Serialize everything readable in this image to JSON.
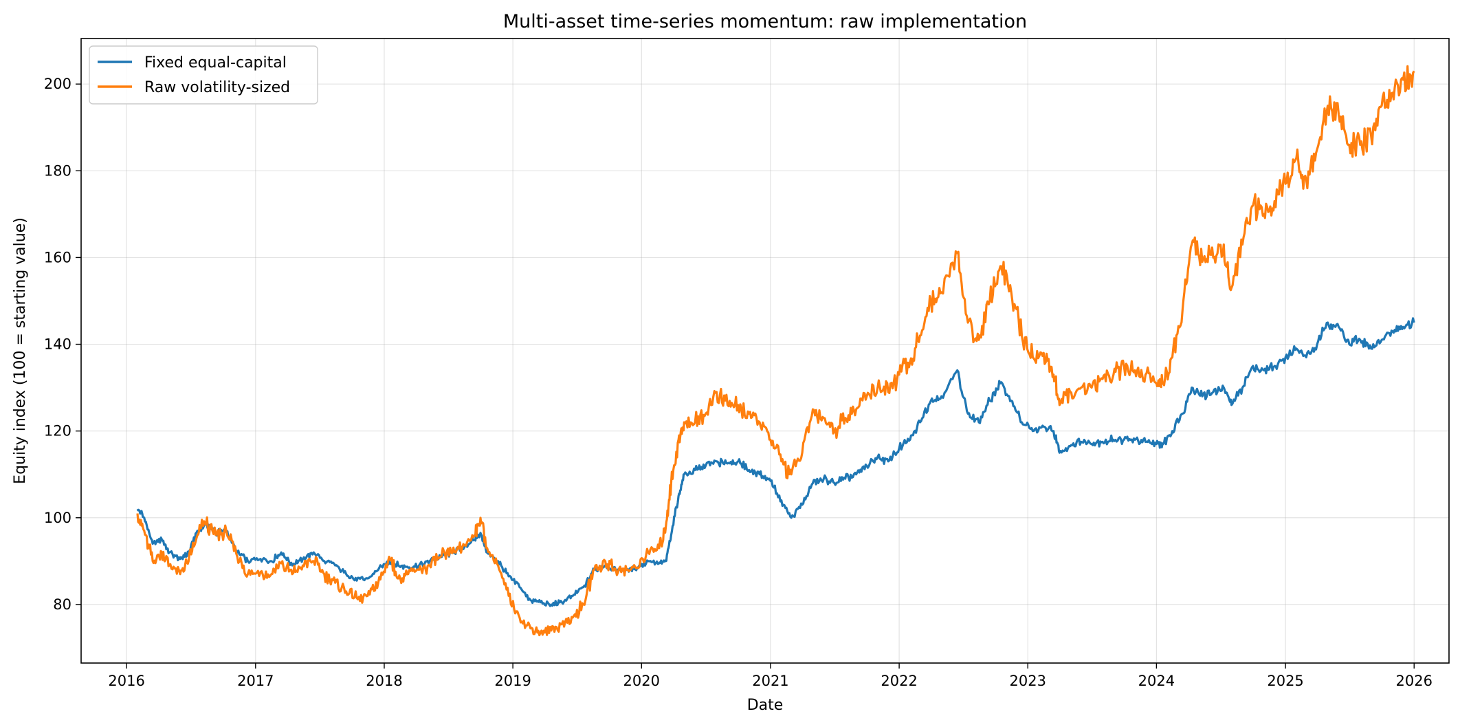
{
  "chart_data": {
    "type": "line",
    "title": "Multi-asset time-series momentum: raw implementation",
    "xlabel": "Date",
    "ylabel": "Equity index (100 = starting value)",
    "xlim": [
      "2015-08-25",
      "2026-04-10"
    ],
    "ylim": [
      66.5,
      210.5
    ],
    "x_ticks": [
      "2016",
      "2017",
      "2018",
      "2019",
      "2020",
      "2021",
      "2022",
      "2023",
      "2024",
      "2025",
      "2026"
    ],
    "y_ticks": [
      80,
      100,
      120,
      140,
      160,
      180,
      200
    ],
    "grid": true,
    "legend_position": "top-left",
    "series": [
      {
        "name": "Fixed equal-capital",
        "color": "#1f77b4",
        "points": [
          [
            "2016-02-01",
            102
          ],
          [
            "2016-02-20",
            100
          ],
          [
            "2016-03-15",
            94
          ],
          [
            "2016-04-10",
            95
          ],
          [
            "2016-05-01",
            92
          ],
          [
            "2016-06-01",
            90.5
          ],
          [
            "2016-06-25",
            92
          ],
          [
            "2016-07-20",
            97
          ],
          [
            "2016-08-15",
            98.5
          ],
          [
            "2016-09-10",
            96.5
          ],
          [
            "2016-10-10",
            97
          ],
          [
            "2016-11-10",
            92
          ],
          [
            "2016-12-10",
            90
          ],
          [
            "2017-01-15",
            90.5
          ],
          [
            "2017-02-15",
            90
          ],
          [
            "2017-03-15",
            92
          ],
          [
            "2017-04-15",
            89
          ],
          [
            "2017-05-15",
            90.5
          ],
          [
            "2017-06-15",
            92
          ],
          [
            "2017-07-15",
            90
          ],
          [
            "2017-08-15",
            89
          ],
          [
            "2017-09-15",
            87
          ],
          [
            "2017-10-15",
            85.5
          ],
          [
            "2017-11-15",
            86
          ],
          [
            "2017-12-15",
            88
          ],
          [
            "2018-01-15",
            90
          ],
          [
            "2018-02-10",
            89
          ],
          [
            "2018-03-10",
            88.5
          ],
          [
            "2018-04-10",
            89
          ],
          [
            "2018-05-10",
            90
          ],
          [
            "2018-06-10",
            91
          ],
          [
            "2018-07-10",
            92
          ],
          [
            "2018-08-10",
            93
          ],
          [
            "2018-09-15",
            95
          ],
          [
            "2018-10-01",
            96.5
          ],
          [
            "2018-10-20",
            92
          ],
          [
            "2018-11-20",
            90
          ],
          [
            "2018-12-20",
            86.5
          ],
          [
            "2019-01-20",
            84
          ],
          [
            "2019-02-20",
            81
          ],
          [
            "2019-03-20",
            80.5
          ],
          [
            "2019-04-20",
            80
          ],
          [
            "2019-05-20",
            80.5
          ],
          [
            "2019-06-20",
            82
          ],
          [
            "2019-07-20",
            84
          ],
          [
            "2019-08-20",
            88
          ],
          [
            "2019-09-20",
            89
          ],
          [
            "2019-10-20",
            88
          ],
          [
            "2019-11-20",
            88
          ],
          [
            "2019-12-20",
            88.5
          ],
          [
            "2020-01-20",
            90
          ],
          [
            "2020-02-20",
            89.5
          ],
          [
            "2020-03-10",
            90
          ],
          [
            "2020-03-25",
            96
          ],
          [
            "2020-04-15",
            105
          ],
          [
            "2020-05-01",
            110
          ],
          [
            "2020-06-01",
            111
          ],
          [
            "2020-07-01",
            112
          ],
          [
            "2020-08-01",
            113
          ],
          [
            "2020-09-01",
            112.5
          ],
          [
            "2020-10-01",
            113
          ],
          [
            "2020-11-01",
            111
          ],
          [
            "2020-12-01",
            110
          ],
          [
            "2021-01-01",
            108.5
          ],
          [
            "2021-02-01",
            104
          ],
          [
            "2021-03-01",
            100
          ],
          [
            "2021-04-01",
            103
          ],
          [
            "2021-05-01",
            108
          ],
          [
            "2021-06-01",
            109
          ],
          [
            "2021-07-01",
            108
          ],
          [
            "2021-08-01",
            109
          ],
          [
            "2021-09-01",
            110
          ],
          [
            "2021-10-01",
            112
          ],
          [
            "2021-11-01",
            114
          ],
          [
            "2021-12-01",
            113
          ],
          [
            "2022-01-01",
            116
          ],
          [
            "2022-02-01",
            118
          ],
          [
            "2022-03-01",
            122
          ],
          [
            "2022-04-01",
            127
          ],
          [
            "2022-05-01",
            128
          ],
          [
            "2022-06-15",
            134
          ],
          [
            "2022-07-15",
            124
          ],
          [
            "2022-08-15",
            122
          ],
          [
            "2022-09-15",
            127
          ],
          [
            "2022-10-15",
            131
          ],
          [
            "2022-11-15",
            127
          ],
          [
            "2022-12-15",
            122
          ],
          [
            "2023-01-15",
            120
          ],
          [
            "2023-02-15",
            121
          ],
          [
            "2023-03-15",
            120
          ],
          [
            "2023-04-01",
            115
          ],
          [
            "2023-05-01",
            116.5
          ],
          [
            "2023-06-01",
            117.5
          ],
          [
            "2023-07-01",
            117
          ],
          [
            "2023-08-01",
            117.5
          ],
          [
            "2023-09-01",
            118
          ],
          [
            "2023-10-01",
            118
          ],
          [
            "2023-11-01",
            118
          ],
          [
            "2023-12-01",
            117.5
          ],
          [
            "2024-01-01",
            117
          ],
          [
            "2024-01-20",
            117
          ],
          [
            "2024-02-15",
            120
          ],
          [
            "2024-03-15",
            124
          ],
          [
            "2024-04-10",
            130
          ],
          [
            "2024-05-10",
            128
          ],
          [
            "2024-06-10",
            129
          ],
          [
            "2024-07-10",
            130
          ],
          [
            "2024-08-01",
            126
          ],
          [
            "2024-09-01",
            130
          ],
          [
            "2024-10-01",
            135
          ],
          [
            "2024-11-01",
            134
          ],
          [
            "2024-12-01",
            135
          ],
          [
            "2025-01-01",
            137
          ],
          [
            "2025-02-01",
            139
          ],
          [
            "2025-03-01",
            137
          ],
          [
            "2025-04-01",
            140
          ],
          [
            "2025-05-01",
            145
          ],
          [
            "2025-06-01",
            144
          ],
          [
            "2025-07-01",
            140
          ],
          [
            "2025-08-01",
            141
          ],
          [
            "2025-09-01",
            139
          ],
          [
            "2025-10-01",
            141
          ],
          [
            "2025-11-01",
            143
          ],
          [
            "2025-12-01",
            144
          ],
          [
            "2026-01-01",
            145
          ]
        ]
      },
      {
        "name": "Raw volatility-sized",
        "color": "#ff7f0e",
        "points": [
          [
            "2016-02-01",
            101
          ],
          [
            "2016-02-20",
            97
          ],
          [
            "2016-03-15",
            90
          ],
          [
            "2016-04-10",
            92
          ],
          [
            "2016-05-01",
            89
          ],
          [
            "2016-06-01",
            87
          ],
          [
            "2016-06-25",
            90
          ],
          [
            "2016-07-20",
            96
          ],
          [
            "2016-08-10",
            99
          ],
          [
            "2016-09-10",
            96
          ],
          [
            "2016-10-10",
            97
          ],
          [
            "2016-11-10",
            91
          ],
          [
            "2016-12-10",
            87
          ],
          [
            "2017-01-15",
            87.5
          ],
          [
            "2017-02-15",
            87
          ],
          [
            "2017-03-15",
            89.5
          ],
          [
            "2017-04-15",
            87
          ],
          [
            "2017-05-15",
            89
          ],
          [
            "2017-06-15",
            90
          ],
          [
            "2017-07-15",
            87
          ],
          [
            "2017-08-15",
            85
          ],
          [
            "2017-09-15",
            83
          ],
          [
            "2017-10-15",
            81.5
          ],
          [
            "2017-11-15",
            82
          ],
          [
            "2017-12-15",
            85
          ],
          [
            "2018-01-15",
            91
          ],
          [
            "2018-02-10",
            86
          ],
          [
            "2018-03-10",
            87
          ],
          [
            "2018-04-10",
            88
          ],
          [
            "2018-05-10",
            89
          ],
          [
            "2018-06-10",
            91
          ],
          [
            "2018-07-10",
            92
          ],
          [
            "2018-08-10",
            93
          ],
          [
            "2018-09-15",
            96
          ],
          [
            "2018-10-01",
            100
          ],
          [
            "2018-10-20",
            93
          ],
          [
            "2018-11-20",
            89
          ],
          [
            "2018-12-20",
            82
          ],
          [
            "2019-01-20",
            77
          ],
          [
            "2019-02-20",
            74.5
          ],
          [
            "2019-03-20",
            73.5
          ],
          [
            "2019-04-20",
            74
          ],
          [
            "2019-05-20",
            75.5
          ],
          [
            "2019-06-20",
            77
          ],
          [
            "2019-07-20",
            80
          ],
          [
            "2019-08-20",
            88
          ],
          [
            "2019-09-20",
            90
          ],
          [
            "2019-10-20",
            88
          ],
          [
            "2019-11-20",
            88
          ],
          [
            "2019-12-20",
            88.5
          ],
          [
            "2020-01-20",
            92
          ],
          [
            "2020-02-20",
            93
          ],
          [
            "2020-03-10",
            98
          ],
          [
            "2020-03-25",
            108
          ],
          [
            "2020-04-15",
            118
          ],
          [
            "2020-05-01",
            122
          ],
          [
            "2020-06-01",
            122
          ],
          [
            "2020-07-01",
            124
          ],
          [
            "2020-08-01",
            129
          ],
          [
            "2020-09-01",
            126
          ],
          [
            "2020-10-01",
            126
          ],
          [
            "2020-11-01",
            124
          ],
          [
            "2020-12-01",
            122
          ],
          [
            "2021-01-01",
            118
          ],
          [
            "2021-02-01",
            113
          ],
          [
            "2021-03-01",
            110
          ],
          [
            "2021-04-01",
            115
          ],
          [
            "2021-05-01",
            125
          ],
          [
            "2021-06-01",
            123
          ],
          [
            "2021-07-01",
            120
          ],
          [
            "2021-08-01",
            123
          ],
          [
            "2021-09-01",
            125
          ],
          [
            "2021-10-01",
            128
          ],
          [
            "2021-11-01",
            130
          ],
          [
            "2021-12-01",
            129
          ],
          [
            "2022-01-01",
            133
          ],
          [
            "2022-02-01",
            136
          ],
          [
            "2022-03-01",
            142
          ],
          [
            "2022-04-01",
            150
          ],
          [
            "2022-05-01",
            152
          ],
          [
            "2022-06-15",
            161
          ],
          [
            "2022-07-15",
            145
          ],
          [
            "2022-08-15",
            141
          ],
          [
            "2022-09-15",
            150
          ],
          [
            "2022-10-15",
            158
          ],
          [
            "2022-11-15",
            152
          ],
          [
            "2022-12-15",
            142
          ],
          [
            "2023-01-15",
            137
          ],
          [
            "2023-02-15",
            138
          ],
          [
            "2023-03-15",
            133
          ],
          [
            "2023-04-01",
            126
          ],
          [
            "2023-05-01",
            129
          ],
          [
            "2023-06-01",
            130
          ],
          [
            "2023-07-01",
            130
          ],
          [
            "2023-08-01",
            132
          ],
          [
            "2023-09-01",
            133
          ],
          [
            "2023-10-01",
            135
          ],
          [
            "2023-11-01",
            134
          ],
          [
            "2023-12-01",
            133
          ],
          [
            "2024-01-01",
            131
          ],
          [
            "2024-01-20",
            131
          ],
          [
            "2024-02-15",
            137
          ],
          [
            "2024-03-15",
            148
          ],
          [
            "2024-04-10",
            163
          ],
          [
            "2024-05-10",
            159
          ],
          [
            "2024-06-10",
            160
          ],
          [
            "2024-07-10",
            163
          ],
          [
            "2024-08-01",
            153
          ],
          [
            "2024-09-01",
            163
          ],
          [
            "2024-10-01",
            172
          ],
          [
            "2024-11-01",
            170
          ],
          [
            "2024-12-01",
            173
          ],
          [
            "2025-01-01",
            177
          ],
          [
            "2025-02-01",
            183
          ],
          [
            "2025-03-01",
            178
          ],
          [
            "2025-04-01",
            185
          ],
          [
            "2025-05-01",
            195
          ],
          [
            "2025-06-01",
            193
          ],
          [
            "2025-07-01",
            186
          ],
          [
            "2025-08-01",
            186
          ],
          [
            "2025-09-01",
            188
          ],
          [
            "2025-10-01",
            195
          ],
          [
            "2025-11-01",
            198
          ],
          [
            "2025-12-01",
            201
          ],
          [
            "2026-01-01",
            203
          ]
        ]
      }
    ]
  }
}
